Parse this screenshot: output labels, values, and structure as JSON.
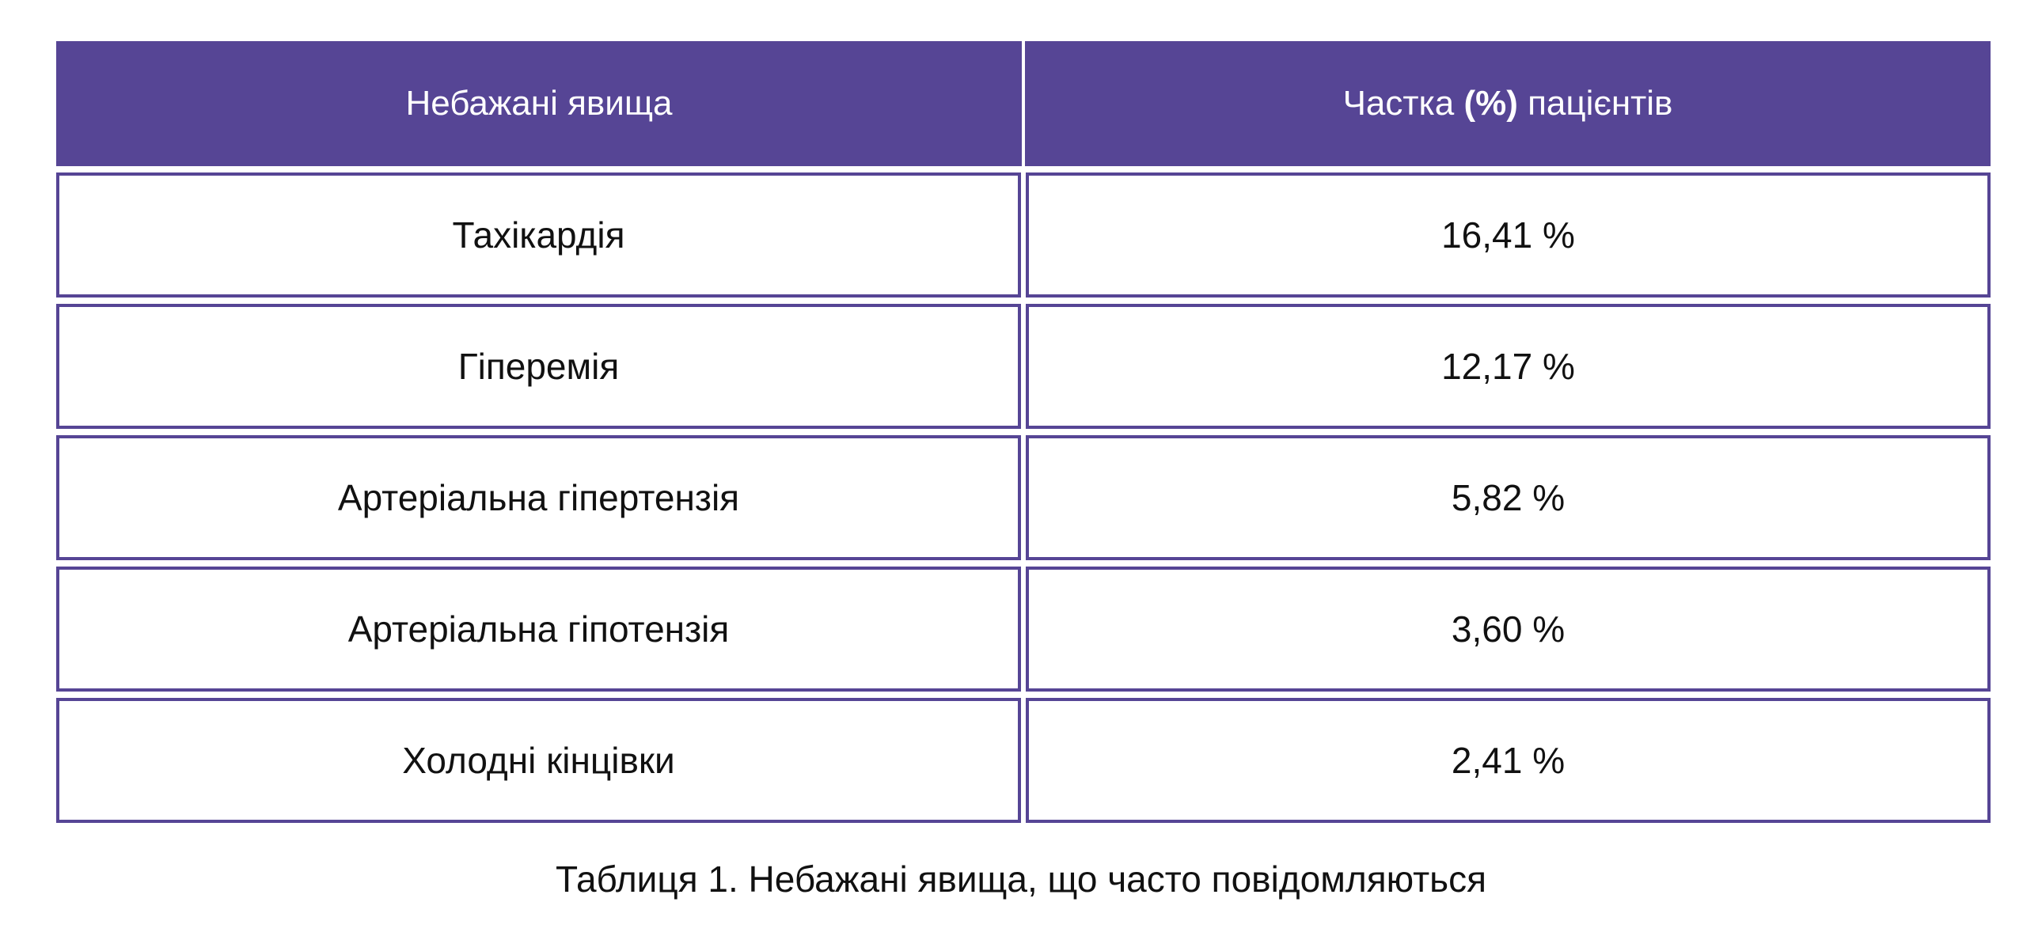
{
  "table": {
    "headers": {
      "col1": "Небажані явища",
      "col2_prefix": "Частка ",
      "col2_strong": "(%)",
      "col2_suffix": " пацієнтів"
    },
    "rows": [
      {
        "label": "Тахікардія",
        "value": "16,41 %"
      },
      {
        "label": "Гіперемія",
        "value": "12,17 %"
      },
      {
        "label": "Артеріальна гіпертензія",
        "value": "5,82 %"
      },
      {
        "label": "Артеріальна гіпотензія",
        "value": "3,60 %"
      },
      {
        "label": "Холодні кінцівки",
        "value": "2,41 %"
      }
    ]
  },
  "caption": "Таблиця 1. Небажані явища, що часто повідомляються",
  "colors": {
    "header_bg": "#564595",
    "border": "#564595",
    "header_text": "#ffffff",
    "body_text": "#111111"
  }
}
